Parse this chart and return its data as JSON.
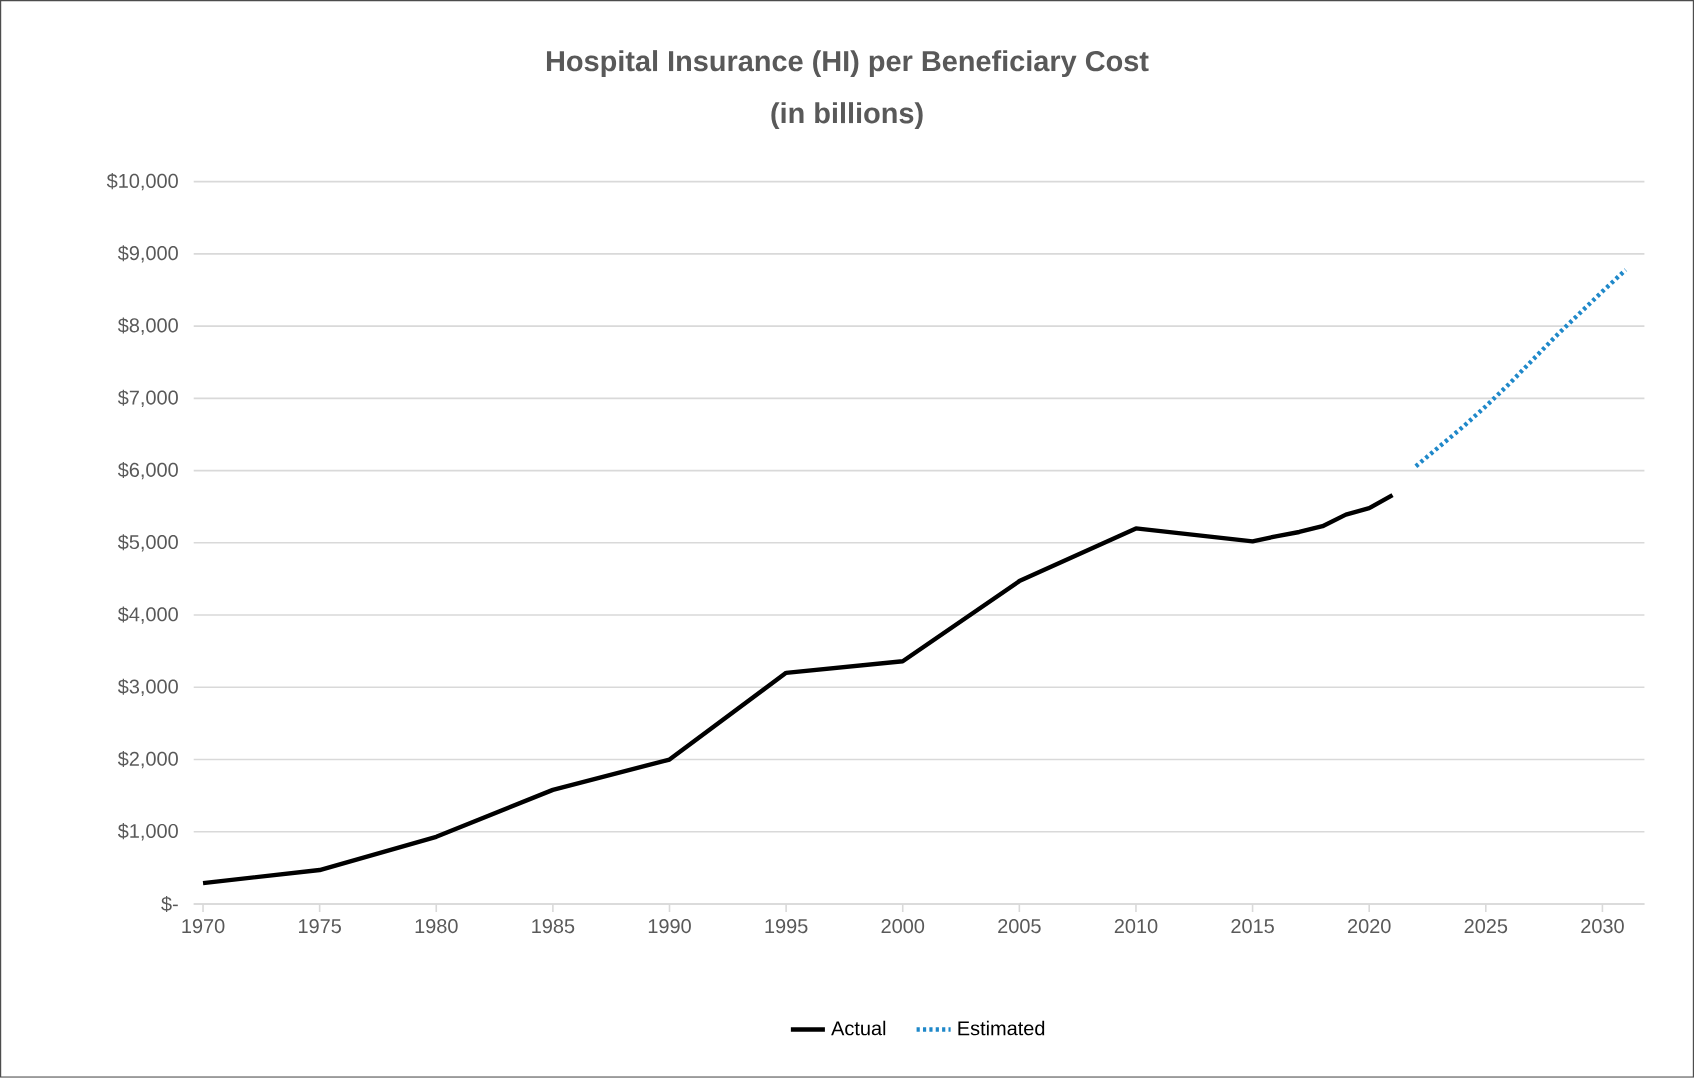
{
  "chart_data": {
    "type": "line",
    "title": "Hospital Insurance (HI) per Beneficiary Cost",
    "subtitle": "(in billions)",
    "series": [
      {
        "name": "Actual",
        "color": "#000000",
        "line_style": "solid",
        "x": [
          1970,
          1975,
          1980,
          1985,
          1990,
          1995,
          2000,
          2005,
          2010,
          2015,
          2016,
          2017,
          2018,
          2019,
          2020,
          2021
        ],
        "values": [
          290,
          470,
          930,
          1580,
          2000,
          3200,
          3360,
          4470,
          5200,
          5020,
          5090,
          5150,
          5230,
          5390,
          5480,
          5660
        ]
      },
      {
        "name": "Estimated",
        "color": "#1f88c9",
        "line_style": "dotted",
        "x": [
          2022,
          2023,
          2024,
          2025,
          2026,
          2027,
          2028,
          2029,
          2030,
          2031
        ],
        "values": [
          6060,
          6330,
          6600,
          6890,
          7200,
          7530,
          7860,
          8170,
          8480,
          8780
        ]
      }
    ],
    "xlim": [
      1969.6,
      2031.8
    ],
    "xticks": [
      1970,
      1975,
      1980,
      1985,
      1990,
      1995,
      2000,
      2005,
      2010,
      2015,
      2020,
      2025,
      2030
    ],
    "ylim": [
      0,
      10000
    ],
    "yticks": [
      {
        "value": 0,
        "label": "$-"
      },
      {
        "value": 1000,
        "label": "$1,000"
      },
      {
        "value": 2000,
        "label": "$2,000"
      },
      {
        "value": 3000,
        "label": "$3,000"
      },
      {
        "value": 4000,
        "label": "$4,000"
      },
      {
        "value": 5000,
        "label": "$5,000"
      },
      {
        "value": 6000,
        "label": "$6,000"
      },
      {
        "value": 7000,
        "label": "$7,000"
      },
      {
        "value": 8000,
        "label": "$8,000"
      },
      {
        "value": 9000,
        "label": "$9,000"
      },
      {
        "value": 10000,
        "label": "$10,000"
      }
    ],
    "grid": "y",
    "legend": "bottom",
    "marker": "none"
  }
}
